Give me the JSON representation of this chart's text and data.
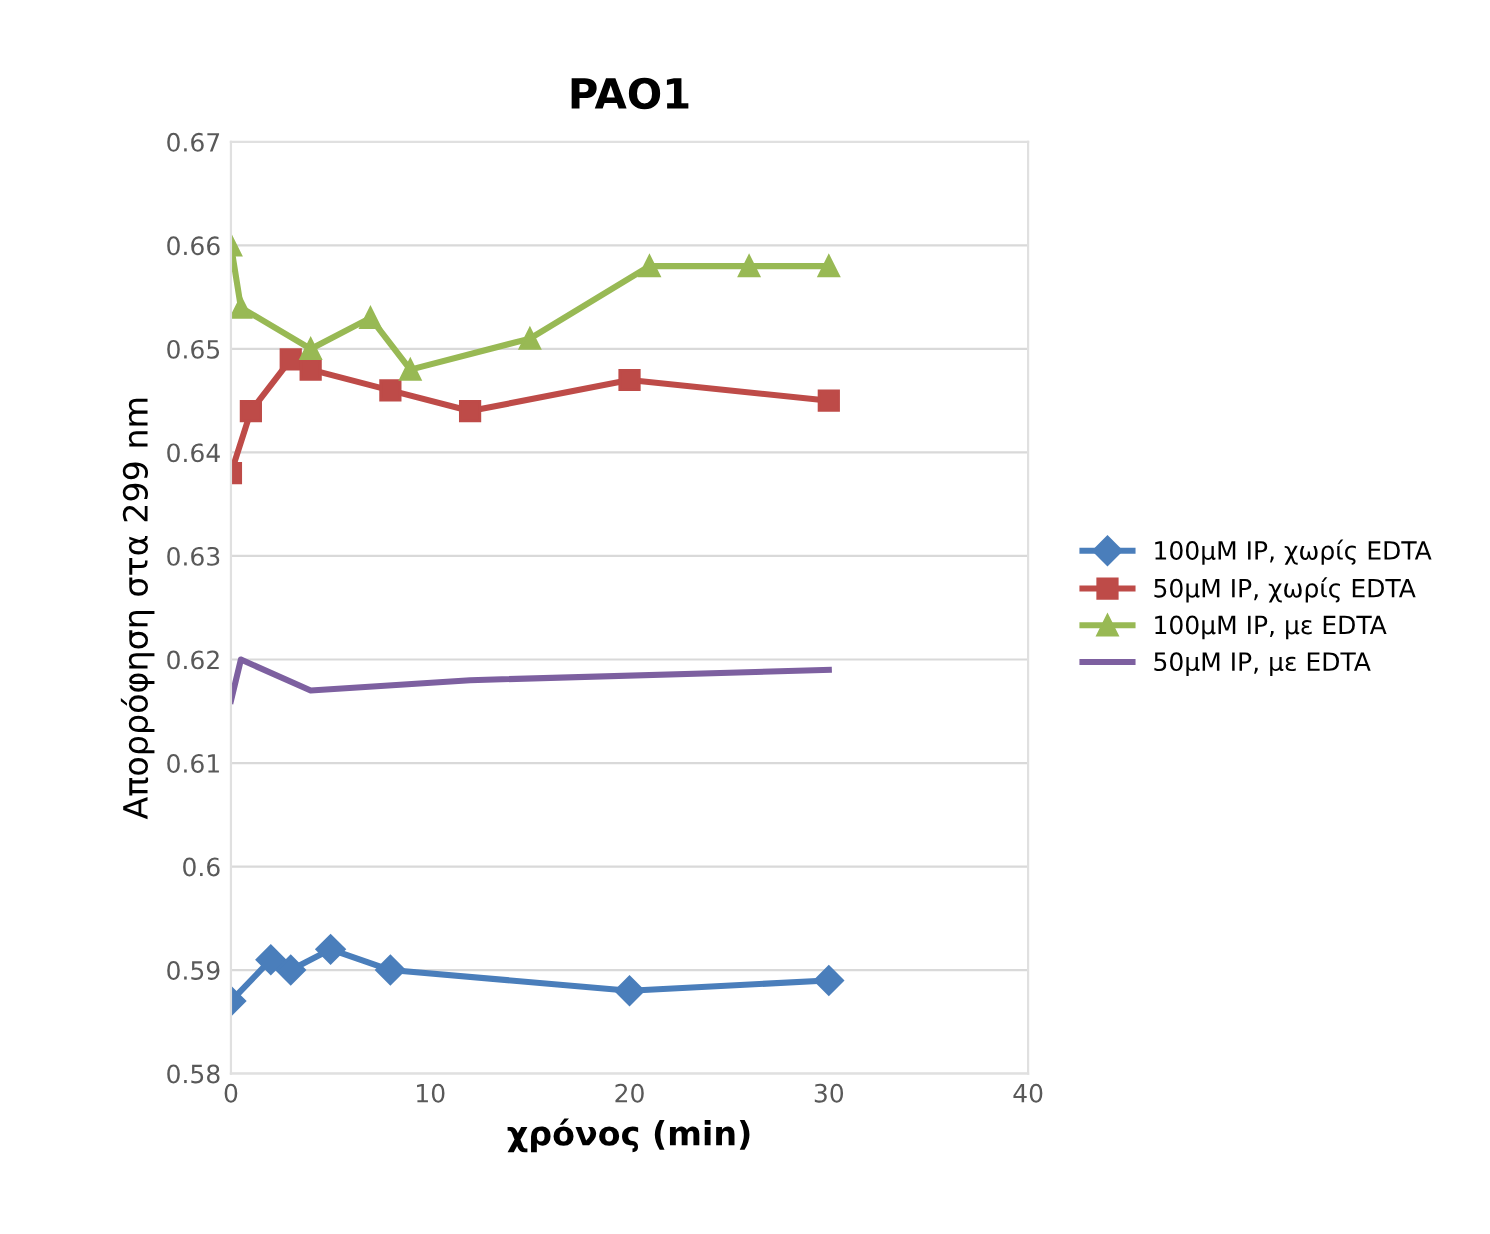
{
  "chart_data": {
    "type": "line",
    "title": "PAO1",
    "xlabel": "χρόνος (min)",
    "ylabel": "Απορρόφηση στα 299 nm",
    "xlim": [
      0,
      40
    ],
    "xticks": [
      0,
      10,
      20,
      30,
      40
    ],
    "ylim": [
      0.58,
      0.67
    ],
    "yticks": [
      0.58,
      0.59,
      0.6,
      0.61,
      0.62,
      0.63,
      0.64,
      0.65,
      0.66,
      0.67
    ],
    "grid": "y",
    "legend": "right",
    "series": [
      {
        "name": "100μM IP, χωρίς EDTA",
        "color": "#4a7ebb",
        "marker": "diamond",
        "x": [
          0,
          2,
          3,
          5,
          8,
          20,
          30
        ],
        "values": [
          0.587,
          0.591,
          0.59,
          0.592,
          0.59,
          0.588,
          0.589
        ]
      },
      {
        "name": "50μM IP, χωρίς EDTA",
        "color": "#be4b48",
        "marker": "square",
        "x": [
          0,
          1,
          3,
          4,
          8,
          12,
          20,
          30
        ],
        "values": [
          0.638,
          0.644,
          0.649,
          0.648,
          0.646,
          0.644,
          0.647,
          0.645
        ]
      },
      {
        "name": "100μM IP, με EDTA",
        "color": "#98b954",
        "marker": "triangle",
        "x": [
          0,
          0.5,
          4,
          7,
          9,
          15,
          21,
          26,
          30
        ],
        "values": [
          0.66,
          0.654,
          0.65,
          0.653,
          0.648,
          0.651,
          0.658,
          0.658,
          0.658
        ]
      },
      {
        "name": "50μM IP, με EDTA",
        "color": "#7d60a0",
        "marker": "none",
        "x": [
          0,
          0.5,
          4,
          12,
          30
        ],
        "values": [
          0.616,
          0.62,
          0.617,
          0.618,
          0.619
        ]
      }
    ]
  }
}
